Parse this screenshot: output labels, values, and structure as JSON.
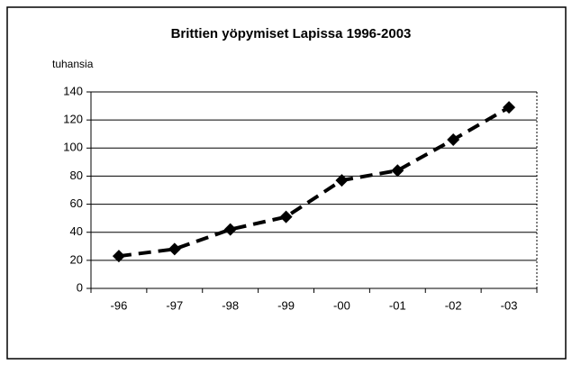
{
  "chart_data": {
    "type": "line",
    "title": "Brittien yöpymiset Lapissa 1996-2003",
    "y_label": "tuhansia",
    "categories": [
      "-96",
      "-97",
      "-98",
      "-99",
      "-00",
      "-01",
      "-02",
      "-03"
    ],
    "values": [
      23,
      28,
      42,
      51,
      77,
      84,
      106,
      129
    ],
    "color": "#000000",
    "ylim": [
      0,
      140
    ],
    "yticks": [
      0,
      20,
      40,
      60,
      80,
      100,
      120,
      140
    ],
    "grid": true
  }
}
